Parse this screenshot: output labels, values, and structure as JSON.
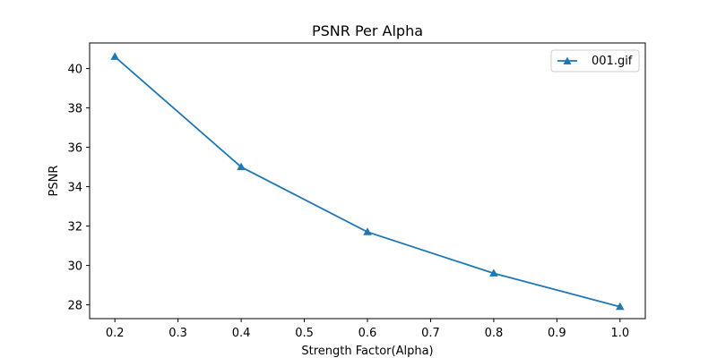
{
  "chart_data": {
    "type": "line",
    "title": "PSNR Per Alpha",
    "xlabel": "Strength Factor(Alpha)",
    "ylabel": "PSNR",
    "xlim": [
      0.16,
      1.04
    ],
    "ylim": [
      27.3,
      41.3
    ],
    "xticks": [
      "0.2",
      "0.3",
      "0.4",
      "0.5",
      "0.6",
      "0.7",
      "0.8",
      "0.9",
      "1.0"
    ],
    "yticks": [
      "28",
      "30",
      "32",
      "34",
      "36",
      "38",
      "40"
    ],
    "grid": false,
    "legend": {
      "position": "top-right",
      "entries": [
        "001.gif"
      ]
    },
    "series": [
      {
        "name": "001.gif",
        "marker": "triangle",
        "color": "#1f77b4",
        "x": [
          0.2,
          0.4,
          0.6,
          0.8,
          1.0
        ],
        "y": [
          40.6,
          35.0,
          31.7,
          29.6,
          27.9
        ]
      }
    ]
  }
}
